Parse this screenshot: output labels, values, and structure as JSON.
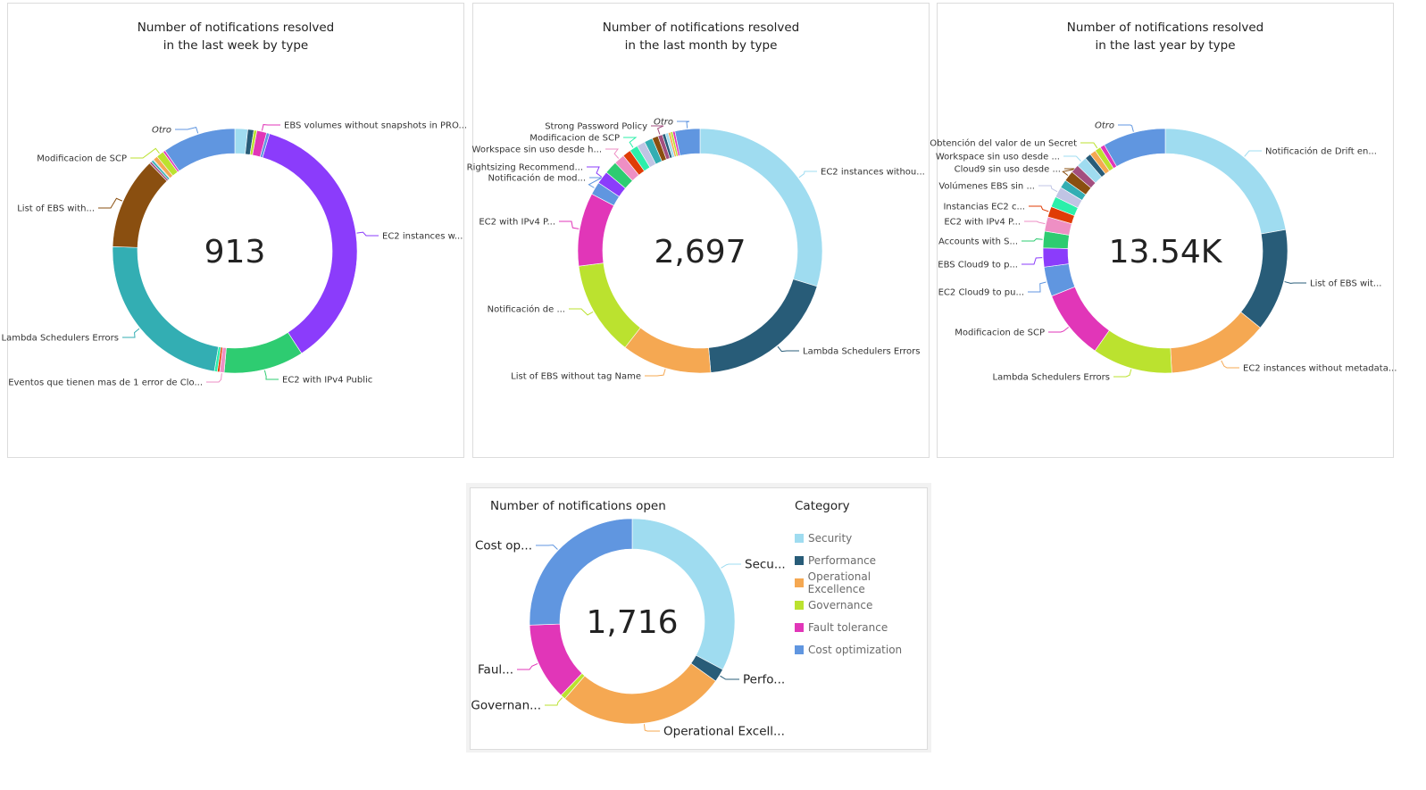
{
  "palette": {
    "lightblue": "#9fdcf0",
    "navy": "#285c78",
    "orange": "#f5a852",
    "lime": "#bbe22f",
    "magenta": "#e136b8",
    "blue": "#6096e0",
    "purple": "#8b3cfb",
    "green": "#2ecc71",
    "teal": "#33aeb3",
    "brown": "#8a4f10",
    "pink": "#ee8fc4",
    "red": "#e03c06",
    "mint": "#2cefaa",
    "lavender": "#c0c4e4",
    "mauve": "#a34f7f"
  },
  "chart_data": [
    {
      "type": "pie",
      "variant": "donut",
      "title_lines": [
        "Number of notifications resolved",
        "in the last week by type"
      ],
      "total_label": "913",
      "unit": "percent share (approx.)",
      "segments": [
        {
          "value": 1.7,
          "c": "lightblue"
        },
        {
          "value": 0.8,
          "c": "navy"
        },
        {
          "value": 0.4,
          "c": "lime"
        },
        {
          "label": "EBS volumes without snapshots in PRO...",
          "value": 1.3,
          "c": "magenta"
        },
        {
          "value": 0.4,
          "c": "blue"
        },
        {
          "label": "EC2 instances w...",
          "value": 36.3,
          "c": "purple"
        },
        {
          "label": "EC2 with IPv4 Public",
          "value": 10.6,
          "c": "green"
        },
        {
          "label": "Eventos que tienen mas de 1 error de Clo...",
          "value": 0.6,
          "c": "pink"
        },
        {
          "value": 0.3,
          "c": "red"
        },
        {
          "value": 0.4,
          "c": "mint"
        },
        {
          "label": "Lambda Schedulers Errors",
          "value": 22.9,
          "c": "teal"
        },
        {
          "label": "List of EBS with...",
          "value": 12.2,
          "c": "brown"
        },
        {
          "value": 0.3,
          "c": "mauve"
        },
        {
          "value": 0.3,
          "c": "teal"
        },
        {
          "value": 0.1,
          "c": "navy"
        },
        {
          "value": 0.6,
          "c": "orange"
        },
        {
          "label": "Modificacion de SCP",
          "value": 1.0,
          "c": "lime"
        },
        {
          "value": 0.3,
          "c": "magenta"
        },
        {
          "label": "Otro",
          "value": 9.7,
          "c": "blue",
          "italic": true
        }
      ]
    },
    {
      "type": "pie",
      "variant": "donut",
      "title_lines": [
        "Number of notifications resolved",
        "in the last month by type"
      ],
      "total_label": "2,697",
      "unit": "percent share (approx.)",
      "segments": [
        {
          "label": "EC2 instances withou...",
          "value": 29.7,
          "c": "lightblue"
        },
        {
          "label": "Lambda Schedulers Errors",
          "value": 18.9,
          "c": "navy"
        },
        {
          "label": "List of EBS without tag Name",
          "value": 11.9,
          "c": "orange"
        },
        {
          "label": "Notificación de ...",
          "value": 12.5,
          "c": "lime"
        },
        {
          "label": "EC2 with IPv4 P...",
          "value": 9.7,
          "c": "magenta"
        },
        {
          "label": "Notificación de mod...",
          "value": 1.7,
          "c": "blue"
        },
        {
          "label": "Rightsizing Recommend...",
          "value": 1.7,
          "c": "purple"
        },
        {
          "value": 1.7,
          "c": "green"
        },
        {
          "label": "Workspace sin uso desde h...",
          "value": 1.4,
          "c": "pink"
        },
        {
          "value": 1.1,
          "c": "red"
        },
        {
          "label": "Modificacion de SCP",
          "value": 1.1,
          "c": "mint"
        },
        {
          "value": 1.1,
          "c": "lavender"
        },
        {
          "value": 1.1,
          "c": "teal"
        },
        {
          "value": 0.8,
          "c": "brown"
        },
        {
          "label": "Strong Password Policy",
          "value": 0.6,
          "c": "mauve"
        },
        {
          "value": 0.4,
          "c": "navy"
        },
        {
          "value": 0.4,
          "c": "lightblue"
        },
        {
          "value": 0.3,
          "c": "orange"
        },
        {
          "value": 0.3,
          "c": "lime"
        },
        {
          "value": 0.3,
          "c": "magenta"
        },
        {
          "label": "Otro",
          "value": 3.3,
          "c": "blue",
          "italic": true
        }
      ]
    },
    {
      "type": "pie",
      "variant": "donut",
      "title_lines": [
        "Number of notifications resolved",
        "in the last year by type"
      ],
      "total_label": "13.54K",
      "unit": "percent share (approx.)",
      "segments": [
        {
          "label": "Notificación de Drift en...",
          "value": 22.2,
          "c": "lightblue"
        },
        {
          "label": "List of EBS wit...",
          "value": 13.6,
          "c": "navy"
        },
        {
          "label": "EC2 instances without metadata...",
          "value": 13.3,
          "c": "orange"
        },
        {
          "label": "Lambda Schedulers Errors",
          "value": 10.6,
          "c": "lime"
        },
        {
          "label": "Modificacion de SCP",
          "value": 9.2,
          "c": "magenta"
        },
        {
          "label": "EC2 Cloud9 to pu...",
          "value": 3.9,
          "c": "blue"
        },
        {
          "label": "EBS Cloud9 to p...",
          "value": 2.5,
          "c": "purple"
        },
        {
          "label": "Accounts with S...",
          "value": 2.2,
          "c": "green"
        },
        {
          "label": "EC2 with IPv4 P...",
          "value": 1.9,
          "c": "pink"
        },
        {
          "label": "Instancias EC2 c...",
          "value": 1.4,
          "c": "red"
        },
        {
          "value": 1.4,
          "c": "mint"
        },
        {
          "label": "Volúmenes EBS sin ...",
          "value": 1.4,
          "c": "lavender"
        },
        {
          "value": 1.1,
          "c": "teal"
        },
        {
          "label": "Cloud9 sin uso desde ...",
          "value": 1.4,
          "c": "brown"
        },
        {
          "value": 1.1,
          "c": "mauve"
        },
        {
          "label": "Workspace sin uso desde ...",
          "value": 1.4,
          "c": "lightblue"
        },
        {
          "value": 0.8,
          "c": "navy"
        },
        {
          "value": 0.8,
          "c": "orange"
        },
        {
          "label": "Obtención del valor de un Secret",
          "value": 0.8,
          "c": "lime"
        },
        {
          "value": 0.6,
          "c": "magenta"
        },
        {
          "label": "Otro",
          "value": 8.3,
          "c": "blue",
          "italic": true
        }
      ]
    },
    {
      "type": "pie",
      "variant": "donut",
      "title": "Number of notifications open",
      "total_label": "1,716",
      "unit": "percent share (approx.)",
      "legend": {
        "title": "Category",
        "placement": "right"
      },
      "segments": [
        {
          "label": "Secu...",
          "name": "Security",
          "value": 32.8,
          "c": "lightblue"
        },
        {
          "label": "Perfo...",
          "name": "Performance",
          "value": 2.1,
          "c": "navy"
        },
        {
          "label": "Operational Excell...",
          "name": "Operational Excellence",
          "value": 26.5,
          "c": "orange"
        },
        {
          "label": "Governan...",
          "name": "Governance",
          "value": 0.8,
          "c": "lime"
        },
        {
          "label": "Faul...",
          "name": "Fault tolerance",
          "value": 12.2,
          "c": "magenta"
        },
        {
          "label": "Cost op...",
          "name": "Cost optimization",
          "value": 25.6,
          "c": "blue"
        }
      ]
    }
  ]
}
